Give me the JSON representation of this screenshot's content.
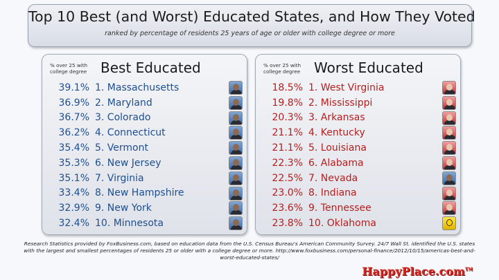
{
  "header": {
    "title": "Top 10 Best (and Worst) Educated States, and How They Voted",
    "subtitle": "ranked by percentage of residents 25 years of age or older with college degree or more"
  },
  "best": {
    "column_header": "% over 25 with college degree",
    "title": "Best Educated",
    "color": "#1e4f8f",
    "rows": [
      {
        "pct": "39.1%",
        "state": "1. Massachusetts",
        "vote": "blue"
      },
      {
        "pct": "36.9%",
        "state": "2. Maryland",
        "vote": "blue"
      },
      {
        "pct": "36.7%",
        "state": "3. Colorado",
        "vote": "blue"
      },
      {
        "pct": "36.2%",
        "state": "4. Connecticut",
        "vote": "blue"
      },
      {
        "pct": "35.4%",
        "state": "5. Vermont",
        "vote": "blue"
      },
      {
        "pct": "35.3%",
        "state": "6. New Jersey",
        "vote": "blue"
      },
      {
        "pct": "35.1%",
        "state": "7. Virginia",
        "vote": "blue"
      },
      {
        "pct": "33.4%",
        "state": "8. New Hampshire",
        "vote": "blue"
      },
      {
        "pct": "32.9%",
        "state": "9. New York",
        "vote": "blue"
      },
      {
        "pct": "32.4%",
        "state": "10. Minnesota",
        "vote": "blue"
      }
    ]
  },
  "worst": {
    "column_header": "% over 25 with college degree",
    "title": "Worst Educated",
    "color": "#b31f1f",
    "rows": [
      {
        "pct": "18.5%",
        "state": "1. West Virginia",
        "vote": "red"
      },
      {
        "pct": "19.8%",
        "state": "2. Mississippi",
        "vote": "red"
      },
      {
        "pct": "20.3%",
        "state": "3. Arkansas",
        "vote": "red"
      },
      {
        "pct": "21.1%",
        "state": "4. Kentucky",
        "vote": "red"
      },
      {
        "pct": "21.1%",
        "state": "5. Louisiana",
        "vote": "red"
      },
      {
        "pct": "22.3%",
        "state": "6. Alabama",
        "vote": "red"
      },
      {
        "pct": "22.5%",
        "state": "7. Nevada",
        "vote": "blue"
      },
      {
        "pct": "23.0%",
        "state": "8. Indiana",
        "vote": "red"
      },
      {
        "pct": "23.6%",
        "state": "9. Tennessee",
        "vote": "red"
      },
      {
        "pct": "23.8%",
        "state": "10. Oklahoma",
        "vote": "yellow"
      }
    ]
  },
  "footer": {
    "source": "Research Statistics provided by FoxBusiness.com, based on education data from the U.S. Census Bureau's American Community Survey. 24/7 Wall St. identified the U.S. states with the largest and smallest percentages of residents 25 or older with a college degree or more. http://www.foxbusiness.com/personal-finance/2012/10/15/americas-best-and-worst-educated-states/",
    "logo": "HappyPlace.com",
    "logo_mark": "TM"
  }
}
